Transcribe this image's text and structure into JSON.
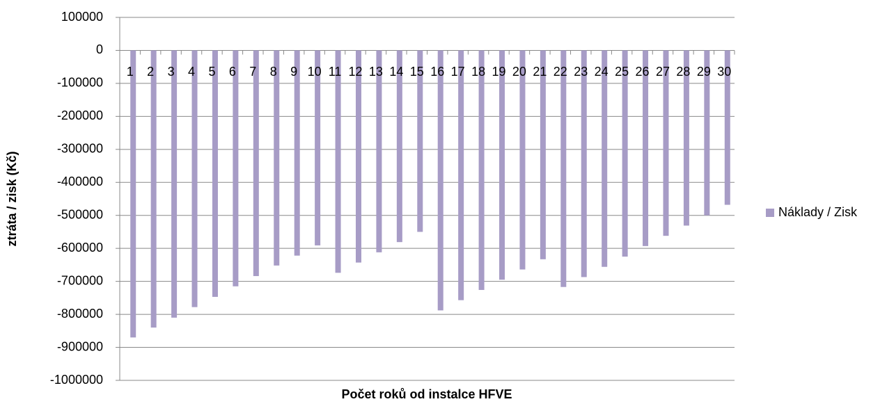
{
  "chart_data": {
    "type": "bar",
    "x_label": "Počet roků od instalce HFVE",
    "y_label": "ztráta / zisk (Kč)",
    "categories": [
      "1",
      "2",
      "3",
      "4",
      "5",
      "6",
      "7",
      "8",
      "9",
      "10",
      "11",
      "12",
      "13",
      "14",
      "15",
      "16",
      "17",
      "18",
      "19",
      "20",
      "21",
      "22",
      "23",
      "24",
      "25",
      "26",
      "27",
      "28",
      "29",
      "30"
    ],
    "series": [
      {
        "name": "Náklady / Zisk",
        "color": "#a79cc6",
        "values": [
          -870000,
          -840000,
          -810000,
          -778000,
          -747000,
          -715000,
          -684000,
          -652000,
          -622000,
          -591000,
          -674000,
          -643000,
          -612000,
          -581000,
          -550000,
          -788000,
          -757000,
          -726000,
          -695000,
          -664000,
          -633000,
          -717000,
          -687000,
          -656000,
          -625000,
          -593000,
          -562000,
          -531000,
          -500000,
          -468000
        ]
      }
    ],
    "ylim": [
      -1000000,
      100000
    ],
    "yticks": [
      -1000000,
      -900000,
      -800000,
      -700000,
      -600000,
      -500000,
      -400000,
      -300000,
      -200000,
      -100000,
      0,
      100000
    ],
    "grid": true,
    "legend": "right"
  }
}
